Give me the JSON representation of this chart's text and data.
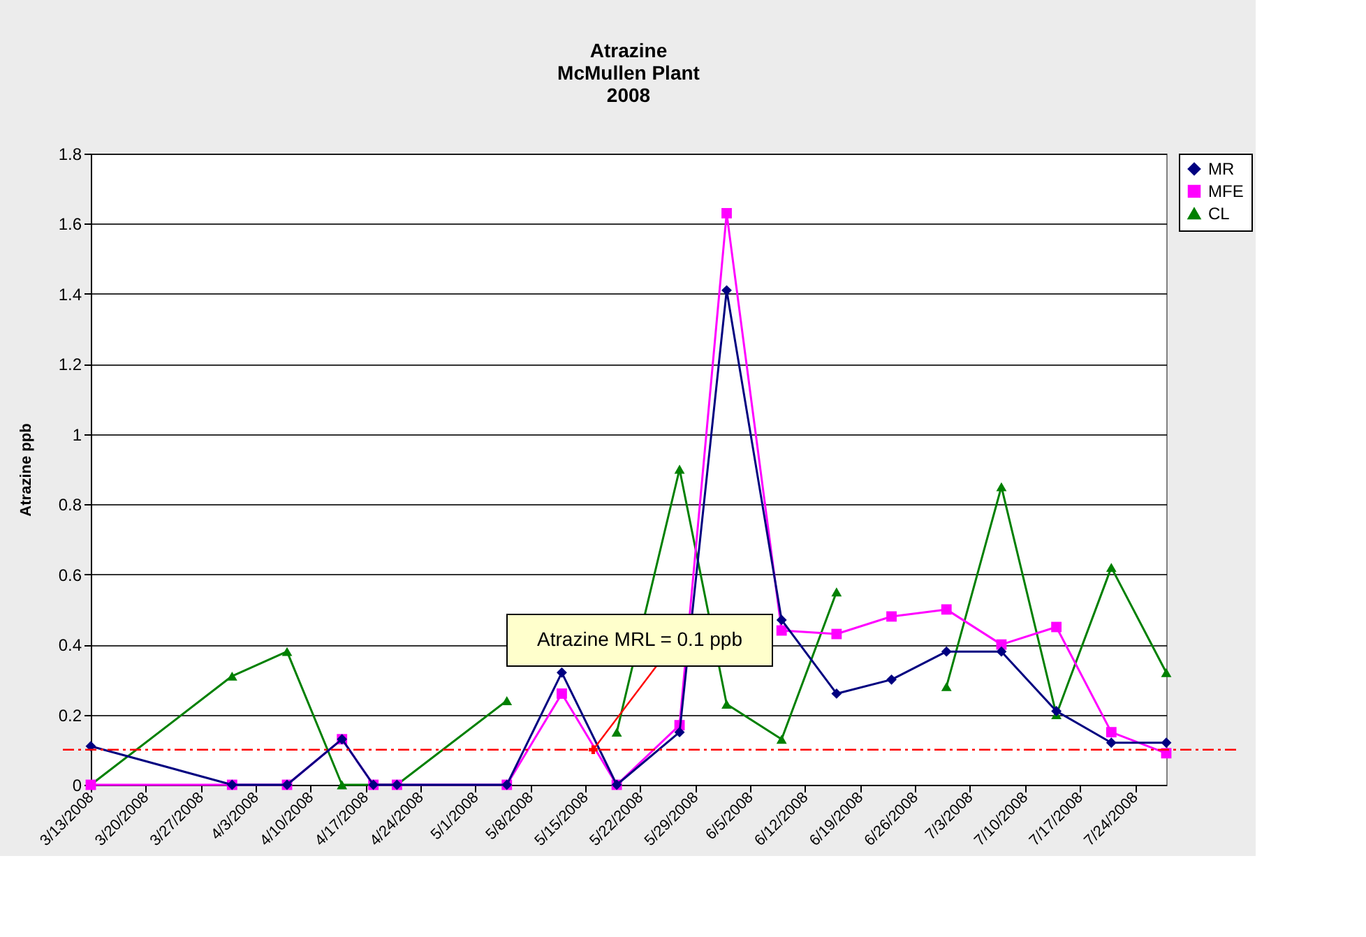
{
  "chart_data": {
    "type": "line",
    "title": "Atrazine\nMcMullen Plant\n2008",
    "ylabel": "Atrazine ppb",
    "x": [
      "2008-03-13",
      "2008-03-31",
      "2008-04-07",
      "2008-04-14",
      "2008-04-18",
      "2008-04-21",
      "2008-05-05",
      "2008-05-12",
      "2008-05-19",
      "2008-05-27",
      "2008-06-02",
      "2008-06-09",
      "2008-06-16",
      "2008-06-23",
      "2008-06-30",
      "2008-07-07",
      "2008-07-14",
      "2008-07-21",
      "2008-07-28"
    ],
    "series": [
      {
        "name": "MR",
        "color": "#000080",
        "marker": "diamond",
        "values": [
          0.11,
          0,
          0,
          0.13,
          0,
          0,
          0,
          0.32,
          0,
          0.15,
          1.41,
          0.47,
          0.26,
          0.3,
          0.38,
          0.38,
          0.21,
          0.12,
          0.12
        ]
      },
      {
        "name": "MFE",
        "color": "#ff00ff",
        "marker": "square",
        "values": [
          0,
          0,
          0,
          0.13,
          0,
          0,
          0,
          0.26,
          0,
          0.17,
          1.63,
          0.44,
          0.43,
          0.48,
          0.5,
          0.4,
          0.45,
          0.15,
          0.09
        ]
      },
      {
        "name": "CL",
        "color": "#008000",
        "marker": "triangle",
        "values": [
          0,
          0.31,
          0.38,
          0,
          0,
          0,
          0.24,
          null,
          0.15,
          0.9,
          0.23,
          0.13,
          0.55,
          null,
          0.28,
          0.85,
          0.2,
          0.62,
          0.32
        ]
      }
    ],
    "xlim": [
      "2008-03-13",
      "2008-07-28"
    ],
    "xticks": [
      {
        "value": "2008-03-13",
        "label": "3/13/2008"
      },
      {
        "value": "2008-03-20",
        "label": "3/20/2008"
      },
      {
        "value": "2008-03-27",
        "label": "3/27/2008"
      },
      {
        "value": "2008-04-03",
        "label": "4/3/2008"
      },
      {
        "value": "2008-04-10",
        "label": "4/10/2008"
      },
      {
        "value": "2008-04-17",
        "label": "4/17/2008"
      },
      {
        "value": "2008-04-24",
        "label": "4/24/2008"
      },
      {
        "value": "2008-05-01",
        "label": "5/1/2008"
      },
      {
        "value": "2008-05-08",
        "label": "5/8/2008"
      },
      {
        "value": "2008-05-15",
        "label": "5/15/2008"
      },
      {
        "value": "2008-05-22",
        "label": "5/22/2008"
      },
      {
        "value": "2008-05-29",
        "label": "5/29/2008"
      },
      {
        "value": "2008-06-05",
        "label": "6/5/2008"
      },
      {
        "value": "2008-06-12",
        "label": "6/12/2008"
      },
      {
        "value": "2008-06-19",
        "label": "6/19/2008"
      },
      {
        "value": "2008-06-26",
        "label": "6/26/2008"
      },
      {
        "value": "2008-07-03",
        "label": "7/3/2008"
      },
      {
        "value": "2008-07-10",
        "label": "7/10/2008"
      },
      {
        "value": "2008-07-17",
        "label": "7/17/2008"
      },
      {
        "value": "2008-07-24",
        "label": "7/24/2008"
      }
    ],
    "ylim": [
      0,
      1.8
    ],
    "yticks": [
      0,
      0.2,
      0.4,
      0.6,
      0.8,
      1,
      1.2,
      1.4,
      1.6,
      1.8
    ],
    "grid": "y",
    "legend": "right",
    "ref_lines": [
      {
        "axis": "y",
        "value": 0.1,
        "label": null,
        "color": "#ff0000",
        "line_style": "dashed"
      }
    ],
    "annotations": [
      {
        "text": "Atrazine MRL = 0.1 ppb",
        "x": "2008-05-16",
        "y": 0.1
      }
    ]
  }
}
